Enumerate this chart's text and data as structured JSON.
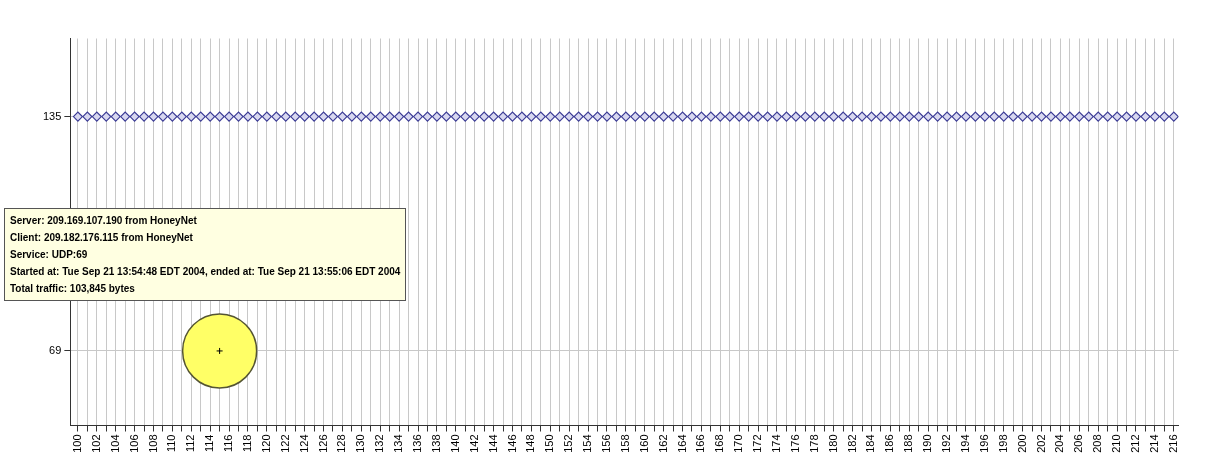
{
  "chart_data": {
    "type": "scatter",
    "xlim": [
      99.2,
      216.5
    ],
    "xticks": [
      100,
      {
        "value": 101,
        "label": null
      },
      102,
      {
        "value": 103,
        "label": null
      },
      104,
      {
        "value": 105,
        "label": null
      },
      106,
      {
        "value": 107,
        "label": null
      },
      108,
      {
        "value": 109,
        "label": null
      },
      110,
      {
        "value": 111,
        "label": null
      },
      112,
      {
        "value": 113,
        "label": null
      },
      114,
      {
        "value": 115,
        "label": null
      },
      116,
      {
        "value": 117,
        "label": null
      },
      118,
      {
        "value": 119,
        "label": null
      },
      120,
      {
        "value": 121,
        "label": null
      },
      122,
      {
        "value": 123,
        "label": null
      },
      124,
      {
        "value": 125,
        "label": null
      },
      126,
      {
        "value": 127,
        "label": null
      },
      128,
      {
        "value": 129,
        "label": null
      },
      130,
      {
        "value": 131,
        "label": null
      },
      132,
      {
        "value": 133,
        "label": null
      },
      134,
      {
        "value": 135,
        "label": null
      },
      136,
      {
        "value": 137,
        "label": null
      },
      138,
      {
        "value": 139,
        "label": null
      },
      140,
      {
        "value": 141,
        "label": null
      },
      142,
      {
        "value": 143,
        "label": null
      },
      144,
      {
        "value": 145,
        "label": null
      },
      146,
      {
        "value": 147,
        "label": null
      },
      148,
      {
        "value": 149,
        "label": null
      },
      150,
      {
        "value": 151,
        "label": null
      },
      152,
      {
        "value": 153,
        "label": null
      },
      154,
      {
        "value": 155,
        "label": null
      },
      156,
      {
        "value": 157,
        "label": null
      },
      158,
      {
        "value": 159,
        "label": null
      },
      160,
      {
        "value": 161,
        "label": null
      },
      162,
      {
        "value": 163,
        "label": null
      },
      164,
      {
        "value": 165,
        "label": null
      },
      166,
      {
        "value": 167,
        "label": null
      },
      168,
      {
        "value": 169,
        "label": null
      },
      170,
      {
        "value": 171,
        "label": null
      },
      172,
      {
        "value": 173,
        "label": null
      },
      174,
      {
        "value": 175,
        "label": null
      },
      176,
      {
        "value": 177,
        "label": null
      },
      178,
      {
        "value": 179,
        "label": null
      },
      180,
      {
        "value": 181,
        "label": null
      },
      182,
      {
        "value": 183,
        "label": null
      },
      184,
      {
        "value": 185,
        "label": null
      },
      186,
      {
        "value": 187,
        "label": null
      },
      188,
      {
        "value": 189,
        "label": null
      },
      190,
      {
        "value": 191,
        "label": null
      },
      192,
      {
        "value": 193,
        "label": null
      },
      194,
      {
        "value": 195,
        "label": null
      },
      196,
      {
        "value": 197,
        "label": null
      },
      198,
      {
        "value": 199,
        "label": null
      },
      200,
      {
        "value": 201,
        "label": null
      },
      202,
      {
        "value": 203,
        "label": null
      },
      204,
      {
        "value": 205,
        "label": null
      },
      206,
      {
        "value": 207,
        "label": null
      },
      208,
      {
        "value": 209,
        "label": null
      },
      210,
      {
        "value": 211,
        "label": null
      },
      212,
      {
        "value": 213,
        "label": null
      },
      214,
      {
        "value": 215,
        "label": null
      },
      216
    ],
    "ylim": [
      48,
      157
    ],
    "yticks": [
      69,
      135
    ],
    "grid": true,
    "series": [
      {
        "marker": "diamond",
        "color": "#3c3c96",
        "x": [
          100,
          101,
          102,
          103,
          104,
          105,
          106,
          107,
          108,
          109,
          110,
          111,
          112,
          113,
          114,
          115,
          116,
          117,
          118,
          119,
          120,
          121,
          122,
          123,
          124,
          125,
          126,
          127,
          128,
          129,
          130,
          131,
          132,
          133,
          134,
          135,
          136,
          137,
          138,
          139,
          140,
          141,
          142,
          143,
          144,
          145,
          146,
          147,
          148,
          149,
          150,
          151,
          152,
          153,
          154,
          155,
          156,
          157,
          158,
          159,
          160,
          161,
          162,
          163,
          164,
          165,
          166,
          167,
          168,
          169,
          170,
          171,
          172,
          173,
          174,
          175,
          176,
          177,
          178,
          179,
          180,
          181,
          182,
          183,
          184,
          185,
          186,
          187,
          188,
          189,
          190,
          191,
          192,
          193,
          194,
          195,
          196,
          197,
          198,
          199,
          200,
          201,
          202,
          203,
          204,
          205,
          206,
          207,
          208,
          209,
          210,
          211,
          212,
          213,
          214,
          215,
          216
        ],
        "values": [
          135,
          135,
          135,
          135,
          135,
          135,
          135,
          135,
          135,
          135,
          135,
          135,
          135,
          135,
          135,
          135,
          135,
          135,
          135,
          135,
          135,
          135,
          135,
          135,
          135,
          135,
          135,
          135,
          135,
          135,
          135,
          135,
          135,
          135,
          135,
          135,
          135,
          135,
          135,
          135,
          135,
          135,
          135,
          135,
          135,
          135,
          135,
          135,
          135,
          135,
          135,
          135,
          135,
          135,
          135,
          135,
          135,
          135,
          135,
          135,
          135,
          135,
          135,
          135,
          135,
          135,
          135,
          135,
          135,
          135,
          135,
          135,
          135,
          135,
          135,
          135,
          135,
          135,
          135,
          135,
          135,
          135,
          135,
          135,
          135,
          135,
          135,
          135,
          135,
          135,
          135,
          135,
          135,
          135,
          135,
          135,
          135,
          135,
          135,
          135,
          135,
          135,
          135,
          135,
          135,
          135,
          135,
          135,
          135,
          135,
          135,
          135,
          135,
          135,
          135,
          135,
          135
        ]
      },
      {
        "type": "bubble",
        "color": "#ffff66",
        "x": [
          115
        ],
        "values": [
          69
        ],
        "sizes": [
          1
        ]
      }
    ],
    "annotations": [
      "Server: 209.169.107.190 from HoneyNet",
      "Client: 209.182.176.115 from HoneyNet",
      "Service: UDP:69",
      "Started at: Tue Sep 21 13:54:48 EDT 2004, ended at: Tue Sep 21 13:55:06 EDT 2004",
      "Total traffic: 103,845 bytes"
    ]
  }
}
